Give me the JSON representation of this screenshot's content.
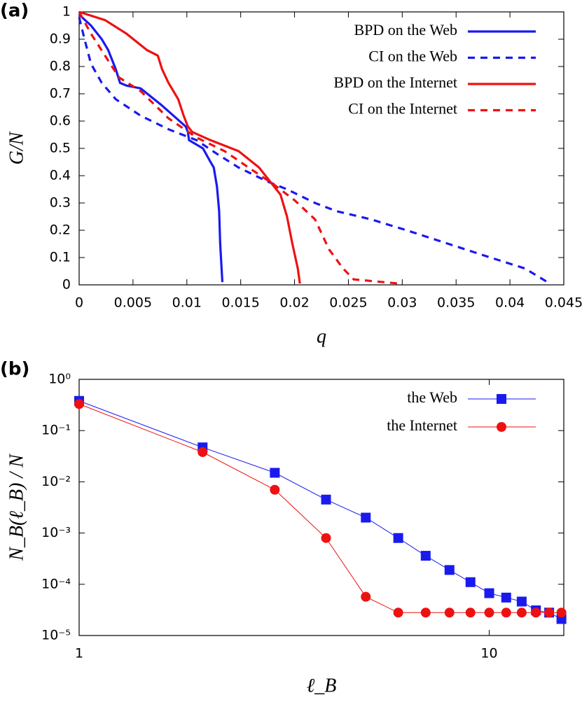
{
  "chart_data": [
    {
      "type": "line",
      "panel_label": "(a)",
      "x_label": "q",
      "y_label": "G/N",
      "xlim": [
        0,
        0.045
      ],
      "ylim": [
        0,
        1
      ],
      "xticks": [
        0,
        0.005,
        0.01,
        0.015,
        0.02,
        0.025,
        0.03,
        0.035,
        0.04,
        0.045
      ],
      "yticks": [
        0,
        0.1,
        0.2,
        0.3,
        0.4,
        0.5,
        0.6,
        0.7,
        0.8,
        0.9,
        1
      ],
      "legend": "top-right",
      "series": [
        {
          "name": "BPD on the Web",
          "color": "#1a1aee",
          "dashed": false,
          "x": [
            0,
            0.0011,
            0.0021,
            0.0027,
            0.0034,
            0.0038,
            0.0044,
            0.0057,
            0.0076,
            0.0099,
            0.0101,
            0.0102,
            0.0115,
            0.0122,
            0.0125,
            0.0128,
            0.013,
            0.0131,
            0.0133
          ],
          "values": [
            0.99,
            0.95,
            0.9,
            0.86,
            0.79,
            0.74,
            0.73,
            0.72,
            0.66,
            0.58,
            0.56,
            0.53,
            0.5,
            0.45,
            0.43,
            0.36,
            0.27,
            0.15,
            0.01
          ]
        },
        {
          "name": "CI on the Web",
          "color": "#1a1aee",
          "dashed": true,
          "x": [
            0,
            0.0005,
            0.0011,
            0.0021,
            0.0034,
            0.0057,
            0.0083,
            0.0109,
            0.0128,
            0.0148,
            0.0174,
            0.0193,
            0.0219,
            0.0239,
            0.0271,
            0.0304,
            0.0343,
            0.0382,
            0.0414,
            0.0437
          ],
          "values": [
            0.98,
            0.9,
            0.81,
            0.74,
            0.68,
            0.62,
            0.57,
            0.53,
            0.48,
            0.43,
            0.38,
            0.35,
            0.3,
            0.27,
            0.24,
            0.2,
            0.15,
            0.1,
            0.06,
            0.005
          ]
        },
        {
          "name": "BPD on the Internet",
          "color": "#ee1111",
          "dashed": false,
          "x": [
            0,
            0.0024,
            0.0044,
            0.0063,
            0.0073,
            0.0077,
            0.0083,
            0.0092,
            0.0097,
            0.0101,
            0.0105,
            0.0122,
            0.0148,
            0.0167,
            0.0177,
            0.0187,
            0.0193,
            0.0198,
            0.0203,
            0.0205
          ],
          "values": [
            1,
            0.97,
            0.92,
            0.86,
            0.84,
            0.79,
            0.74,
            0.68,
            0.62,
            0.58,
            0.56,
            0.53,
            0.49,
            0.43,
            0.38,
            0.33,
            0.25,
            0.15,
            0.06,
            0.005
          ]
        },
        {
          "name": "CI on the Internet",
          "color": "#ee1111",
          "dashed": true,
          "x": [
            0,
            0.0011,
            0.0024,
            0.0037,
            0.0057,
            0.0083,
            0.0109,
            0.0135,
            0.0161,
            0.018,
            0.02,
            0.0219,
            0.0232,
            0.0245,
            0.0255,
            0.0297
          ],
          "values": [
            1,
            0.92,
            0.84,
            0.76,
            0.71,
            0.61,
            0.54,
            0.49,
            0.42,
            0.37,
            0.31,
            0.24,
            0.13,
            0.06,
            0.02,
            0.005
          ]
        }
      ]
    },
    {
      "type": "line",
      "panel_label": "(b)",
      "x_label": "ℓ_B",
      "y_label": "N_B(ℓ_B) / N",
      "xscale": "log",
      "yscale": "log",
      "xlim": [
        1,
        15.2
      ],
      "ylim": [
        1e-05,
        1
      ],
      "xticks": [
        1,
        10
      ],
      "yticks": [
        {
          "value": 1e-05,
          "label": "10⁻⁵"
        },
        {
          "value": 0.0001,
          "label": "10⁻⁴"
        },
        {
          "value": 0.001,
          "label": "10⁻³"
        },
        {
          "value": 0.01,
          "label": "10⁻²"
        },
        {
          "value": 0.1,
          "label": "10⁻¹"
        },
        {
          "value": 1,
          "label": "10⁰"
        }
      ],
      "legend": "top-right",
      "x": [
        1,
        2,
        3,
        4,
        5,
        6,
        7,
        8,
        9,
        10,
        11,
        12,
        13,
        14,
        15
      ],
      "series": [
        {
          "name": "the Web",
          "color": "#1a1aee",
          "marker": "square",
          "values": [
            0.38,
            0.047,
            0.015,
            0.0045,
            0.002,
            0.0008,
            0.00036,
            0.00019,
            0.00011,
            6.7e-05,
            5.5e-05,
            4.6e-05,
            3.1e-05,
            2.8e-05,
            2.1e-05
          ]
        },
        {
          "name": "the Internet",
          "color": "#ee1111",
          "marker": "circle",
          "values": [
            0.33,
            0.038,
            0.007,
            0.0008,
            5.7e-05,
            2.8e-05,
            2.8e-05,
            2.8e-05,
            2.8e-05,
            2.8e-05,
            2.8e-05,
            2.8e-05,
            2.8e-05,
            2.8e-05,
            2.8e-05
          ]
        }
      ]
    }
  ]
}
